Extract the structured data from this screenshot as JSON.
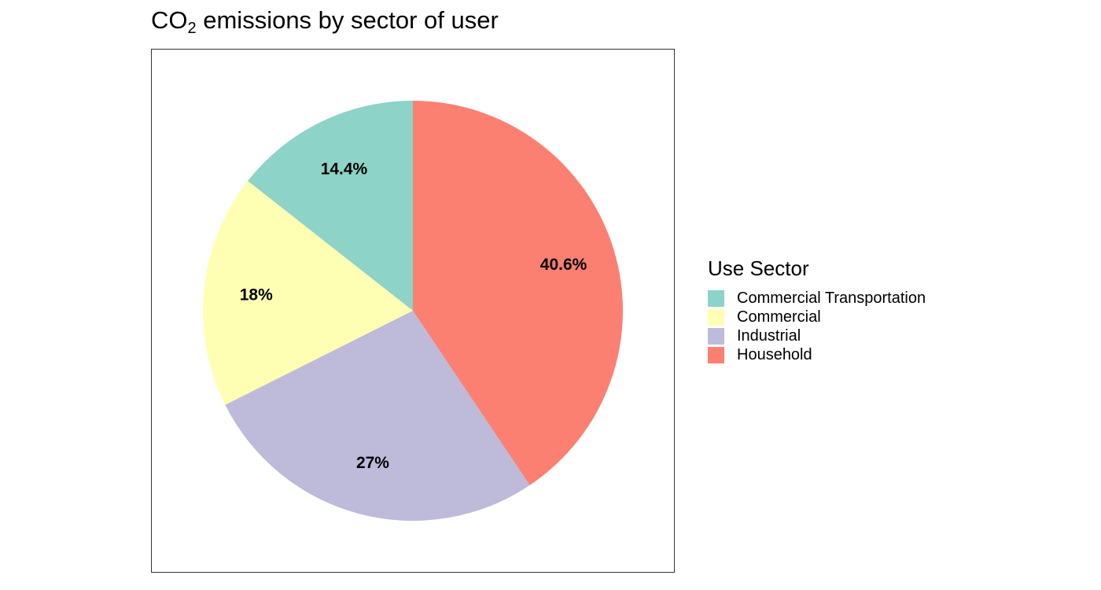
{
  "chart_data": {
    "type": "pie",
    "title_main": "CO",
    "title_sub": "2",
    "title_rest": " emissions by sector of user",
    "legend_title": "Use Sector",
    "legend_position": "right",
    "slices": [
      {
        "label": "Commercial Transportation",
        "value": 14.4,
        "display": "14.4%",
        "color": "#8DD3C7"
      },
      {
        "label": "Commercial",
        "value": 18.0,
        "display": "18%",
        "color": "#FFFFB3"
      },
      {
        "label": "Industrial",
        "value": 27.0,
        "display": "27%",
        "color": "#BEBADA"
      },
      {
        "label": "Household",
        "value": 40.6,
        "display": "40.6%",
        "color": "#FB8072"
      }
    ],
    "start": "12 o'clock",
    "direction": "counterclockwise (Household clockwise from top)"
  }
}
